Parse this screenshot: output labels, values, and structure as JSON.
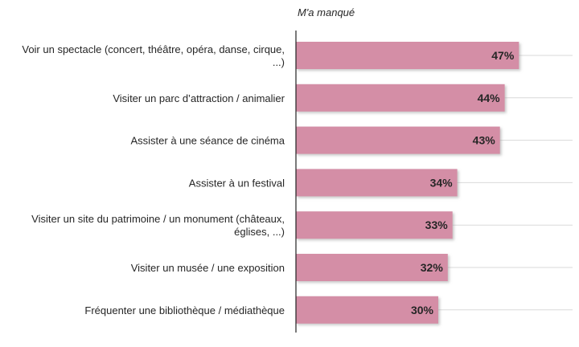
{
  "chart_data": {
    "type": "bar",
    "orientation": "horizontal",
    "series": [
      {
        "name": "M'a manqué",
        "values": [
          47,
          44,
          43,
          34,
          33,
          32,
          30
        ]
      }
    ],
    "categories": [
      [
        "Voir un spectacle (concert, théâtre, opéra, danse, cirque,",
        "...)"
      ],
      [
        "Visiter un parc d’attraction / animalier"
      ],
      [
        "Assister à une séance de cinéma"
      ],
      [
        "Assister à un festival"
      ],
      [
        "Visiter un site du patrimoine / un monument (châteaux,",
        "églises, ...)"
      ],
      [
        "Visiter un musée / une exposition"
      ],
      [
        "Fréquenter une bibliothèque / médiathèque"
      ]
    ],
    "value_labels": [
      "47%",
      "44%",
      "43%",
      "34%",
      "33%",
      "32%",
      "30%"
    ],
    "unit": "%",
    "colors": {
      "bar": "#d48ea6",
      "bar_shadow": "#b9b9b9",
      "axis": "#222222",
      "gridline": "#d9d9d9"
    },
    "grid": true,
    "legend": "none"
  }
}
